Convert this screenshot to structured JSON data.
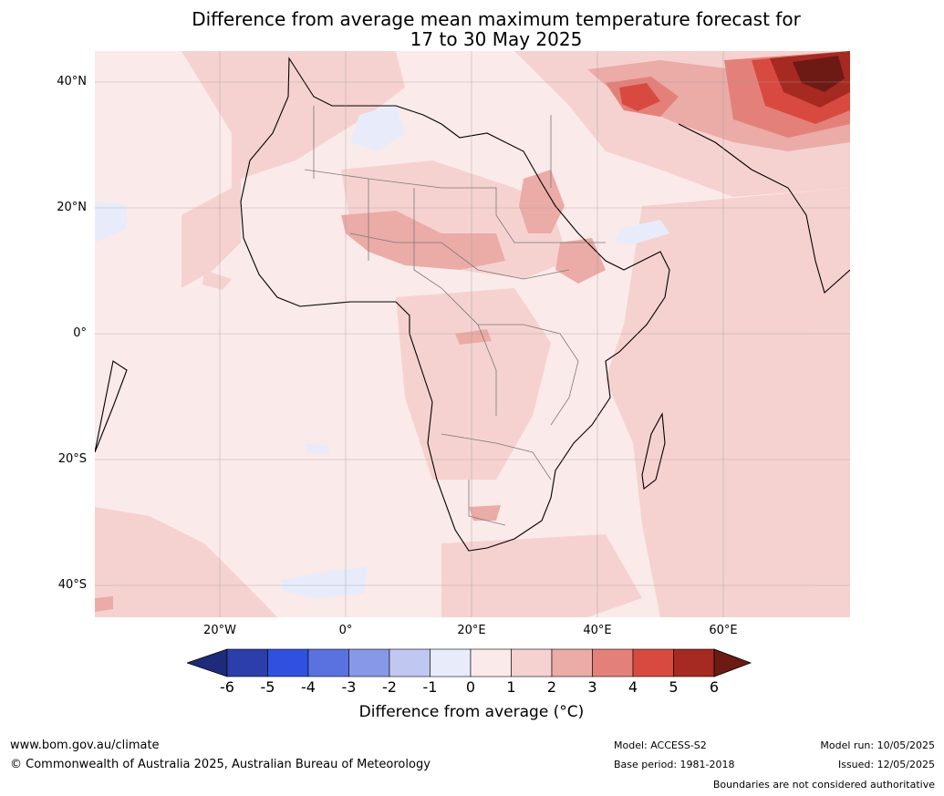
{
  "title_line1": "Difference from average mean maximum temperature forecast for",
  "title_line2": "17 to 30 May 2025",
  "lat_labels": [
    "40°N",
    "20°N",
    "0°",
    "20°S",
    "40°S"
  ],
  "lon_labels": [
    "20°W",
    "0°",
    "20°E",
    "40°E",
    "60°E"
  ],
  "colorbar": {
    "ticks": [
      "-6",
      "-5",
      "-4",
      "-3",
      "-2",
      "-1",
      "0",
      "1",
      "2",
      "3",
      "4",
      "5",
      "6"
    ],
    "label": "Difference from average (°C)",
    "colors": [
      "#1d2b7a",
      "#2b3eaa",
      "#3050e0",
      "#5a72e0",
      "#8898e8",
      "#c0c8f2",
      "#e8ecfa",
      "#fbeaea",
      "#f5d2d0",
      "#ebaba7",
      "#e4807a",
      "#d84a40",
      "#a72a22",
      "#6e1a14"
    ]
  },
  "footer": {
    "url": "www.bom.gov.au/climate",
    "copyright": "© Commonwealth of Australia 2025, Australian Bureau of Meteorology",
    "model": "Model: ACCESS-S2",
    "base_period": "Base period: 1981-2018",
    "model_run": "Model run: 10/05/2025",
    "issued": "Issued: 12/05/2025",
    "disclaimer": "Boundaries are not considered authoritative"
  }
}
